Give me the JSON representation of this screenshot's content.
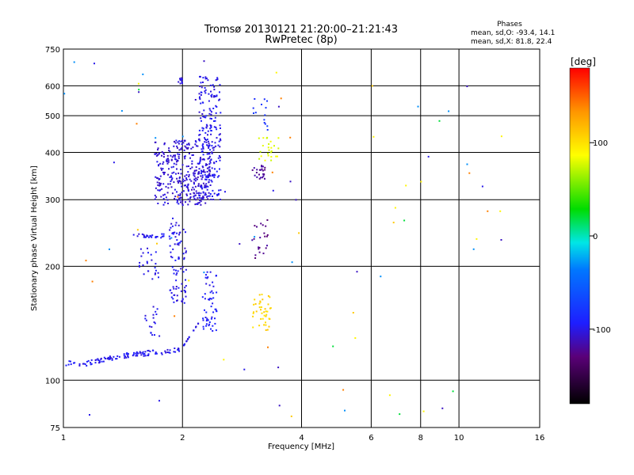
{
  "header": {
    "title_line1": "Tromsø 20130121 21:20:00–21:21:43",
    "title_line2": "RwPretec (8p)"
  },
  "stats": {
    "heading": "Phases",
    "line_o": "mean, sd,O: -93.4, 14.1",
    "line_x": "mean, sd,X:  81.8, 22.4"
  },
  "colorbar": {
    "unit_label": "[deg]",
    "tick_labels": [
      "100",
      "0",
      "-100"
    ],
    "tick_values": [
      100,
      0,
      -100
    ],
    "range": [
      -180,
      180
    ]
  },
  "chart_data": {
    "type": "scatter",
    "xlabel": "Frequency [MHz]",
    "ylabel": "Stationary phase Virtual Height [km]",
    "x_scale": "log",
    "y_scale": "log",
    "xlim": [
      1,
      16
    ],
    "ylim": [
      75,
      750
    ],
    "x_ticks": [
      1,
      2,
      4,
      6,
      8,
      10,
      16
    ],
    "x_tick_labels": [
      "1",
      "2",
      "4",
      "6",
      "8",
      "10",
      "16"
    ],
    "y_ticks": [
      75,
      100,
      200,
      300,
      400,
      500,
      600,
      750
    ],
    "y_tick_labels": [
      "75",
      "100",
      "200",
      "300",
      "400",
      "500",
      "600",
      "750"
    ],
    "grid": true,
    "color_encodes": "phase [deg]",
    "groups": [
      {
        "x_range": [
          1.0,
          2.0
        ],
        "y_range": [
          108,
          122
        ],
        "phase": -100,
        "shape": "curve",
        "x_curve": [
          1.0,
          1.1,
          1.2,
          1.35,
          1.5,
          1.65,
          1.8,
          1.95,
          2.05,
          2.15
        ],
        "y_curve": [
          111,
          110,
          112,
          115,
          117,
          118,
          119,
          120,
          124,
          132
        ],
        "count": 110
      },
      {
        "x_range": [
          2.0,
          2.2
        ],
        "y_range": [
          122,
          142
        ],
        "phase": -100,
        "shape": "line",
        "count": 22
      },
      {
        "x_range": [
          1.7,
          2.35
        ],
        "y_range": [
          290,
          430
        ],
        "phase": -105,
        "shape": "cloud",
        "count": 340
      },
      {
        "x_range": [
          2.2,
          2.5
        ],
        "y_range": [
          300,
          640
        ],
        "phase": -100,
        "shape": "cloud",
        "count": 220
      },
      {
        "x_range": [
          1.85,
          2.05
        ],
        "y_range": [
          160,
          270
        ],
        "phase": -100,
        "shape": "column",
        "count": 85
      },
      {
        "x_range": [
          1.55,
          1.75
        ],
        "y_range": [
          185,
          225
        ],
        "phase": -100,
        "shape": "column",
        "count": 25
      },
      {
        "x_range": [
          1.5,
          1.8
        ],
        "y_range": [
          238,
          244
        ],
        "phase": -100,
        "shape": "band",
        "count": 28
      },
      {
        "x_range": [
          2.25,
          2.45
        ],
        "y_range": [
          135,
          195
        ],
        "phase": -95,
        "shape": "column",
        "count": 55
      },
      {
        "x_range": [
          1.6,
          1.75
        ],
        "y_range": [
          128,
          160
        ],
        "phase": -100,
        "shape": "column",
        "count": 18
      },
      {
        "x_range": [
          1.95,
          2.0
        ],
        "y_range": [
          600,
          630
        ],
        "phase": -100,
        "shape": "cluster",
        "count": 10
      },
      {
        "x_range": [
          3.0,
          3.25
        ],
        "y_range": [
          340,
          370
        ],
        "phase": -120,
        "shape": "curve",
        "count": 25
      },
      {
        "x_range": [
          3.0,
          3.3
        ],
        "y_range": [
          210,
          265
        ],
        "phase": -125,
        "shape": "column",
        "count": 22
      },
      {
        "x_range": [
          3.0,
          3.35
        ],
        "y_range": [
          135,
          170
        ],
        "phase": 105,
        "shape": "curve",
        "count": 40
      },
      {
        "x_range": [
          3.1,
          3.5
        ],
        "y_range": [
          380,
          440
        ],
        "phase": 80,
        "shape": "column",
        "count": 25
      },
      {
        "x_range": [
          3.0,
          3.3
        ],
        "y_range": [
          440,
          560
        ],
        "phase": -80,
        "shape": "scatter",
        "count": 14
      },
      {
        "x_range": [
          1.0,
          6.5
        ],
        "y_range": [
          80,
          700
        ],
        "phase": 0,
        "shape": "scatter",
        "count": 55
      },
      {
        "x_range": [
          6.5,
          13
        ],
        "y_range": [
          80,
          700
        ],
        "phase": 0,
        "shape": "scatter",
        "count": 24
      }
    ]
  }
}
